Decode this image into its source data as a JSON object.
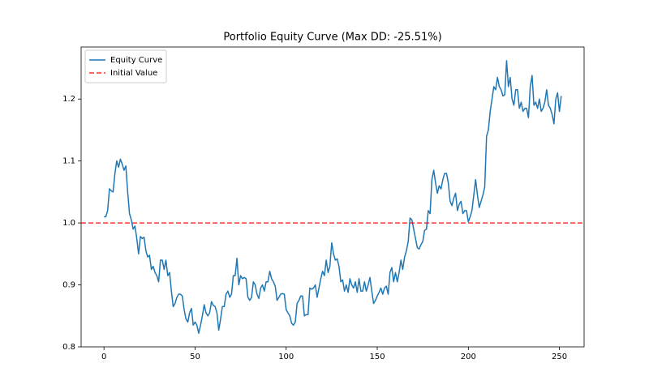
{
  "chart_data": {
    "type": "line",
    "title": "Portfolio Equity Curve (Max DD: -25.51%)",
    "x": [
      0,
      1,
      2,
      3,
      4,
      5,
      6,
      7,
      8,
      9,
      10,
      11,
      12,
      13,
      14,
      15,
      16,
      17,
      18,
      19,
      20,
      21,
      22,
      23,
      24,
      25,
      26,
      27,
      28,
      29,
      30,
      31,
      32,
      33,
      34,
      35,
      36,
      37,
      38,
      39,
      40,
      41,
      42,
      43,
      44,
      45,
      46,
      47,
      48,
      49,
      50,
      51,
      52,
      53,
      54,
      55,
      56,
      57,
      58,
      59,
      60,
      61,
      62,
      63,
      64,
      65,
      66,
      67,
      68,
      69,
      70,
      71,
      72,
      73,
      74,
      75,
      76,
      77,
      78,
      79,
      80,
      81,
      82,
      83,
      84,
      85,
      86,
      87,
      88,
      89,
      90,
      91,
      92,
      93,
      94,
      95,
      96,
      97,
      98,
      99,
      100,
      101,
      102,
      103,
      104,
      105,
      106,
      107,
      108,
      109,
      110,
      111,
      112,
      113,
      114,
      115,
      116,
      117,
      118,
      119,
      120,
      121,
      122,
      123,
      124,
      125,
      126,
      127,
      128,
      129,
      130,
      131,
      132,
      133,
      134,
      135,
      136,
      137,
      138,
      139,
      140,
      141,
      142,
      143,
      144,
      145,
      146,
      147,
      148,
      149,
      150,
      151,
      152,
      153,
      154,
      155,
      156,
      157,
      158,
      159,
      160,
      161,
      162,
      163,
      164,
      165,
      166,
      167,
      168,
      169,
      170,
      171,
      172,
      173,
      174,
      175,
      176,
      177,
      178,
      179,
      180,
      181,
      182,
      183,
      184,
      185,
      186,
      187,
      188,
      189,
      190,
      191,
      192,
      193,
      194,
      195,
      196,
      197,
      198,
      199,
      200,
      201,
      202,
      203,
      204,
      205,
      206,
      207,
      208,
      209,
      210,
      211,
      212,
      213,
      214,
      215,
      216,
      217,
      218,
      219,
      220,
      221,
      222,
      223,
      224,
      225,
      226,
      227,
      228,
      229,
      230,
      231,
      232,
      233,
      234,
      235,
      236,
      237,
      238,
      239,
      240,
      241,
      242,
      243,
      244,
      245,
      246,
      247,
      248,
      249,
      250,
      251
    ],
    "series": [
      {
        "name": "Equity Curve",
        "color": "#1f77b4",
        "values": [
          1.01,
          1.01,
          1.02,
          1.055,
          1.052,
          1.05,
          1.08,
          1.1,
          1.09,
          1.103,
          1.095,
          1.085,
          1.092,
          1.05,
          1.015,
          1.005,
          0.99,
          0.995,
          0.975,
          0.95,
          0.978,
          0.975,
          0.977,
          0.955,
          0.945,
          0.948,
          0.925,
          0.93,
          0.92,
          0.915,
          0.905,
          0.94,
          0.94,
          0.925,
          0.94,
          0.915,
          0.92,
          0.89,
          0.865,
          0.87,
          0.88,
          0.885,
          0.885,
          0.882,
          0.86,
          0.845,
          0.84,
          0.855,
          0.862,
          0.835,
          0.84,
          0.835,
          0.822,
          0.835,
          0.85,
          0.868,
          0.855,
          0.85,
          0.855,
          0.873,
          0.867,
          0.865,
          0.855,
          0.827,
          0.845,
          0.865,
          0.865,
          0.885,
          0.89,
          0.88,
          0.885,
          0.915,
          0.915,
          0.943,
          0.9,
          0.915,
          0.91,
          0.912,
          0.91,
          0.88,
          0.875,
          0.88,
          0.905,
          0.9,
          0.885,
          0.878,
          0.895,
          0.9,
          0.89,
          0.905,
          0.905,
          0.922,
          0.91,
          0.905,
          0.898,
          0.875,
          0.88,
          0.885,
          0.886,
          0.885,
          0.86,
          0.855,
          0.85,
          0.838,
          0.835,
          0.84,
          0.87,
          0.875,
          0.882,
          0.882,
          0.85,
          0.852,
          0.852,
          0.895,
          0.893,
          0.895,
          0.9,
          0.88,
          0.895,
          0.91,
          0.922,
          0.915,
          0.94,
          0.92,
          0.93,
          0.968,
          0.95,
          0.94,
          0.942,
          0.93,
          0.905,
          0.908,
          0.89,
          0.9,
          0.888,
          0.91,
          0.9,
          0.895,
          0.905,
          0.888,
          0.91,
          0.89,
          0.89,
          0.905,
          0.89,
          0.9,
          0.912,
          0.89,
          0.87,
          0.875,
          0.882,
          0.888,
          0.895,
          0.885,
          0.895,
          0.898,
          0.885,
          0.92,
          0.928,
          0.905,
          0.92,
          0.905,
          0.92,
          0.94,
          0.925,
          0.945,
          0.955,
          0.97,
          1.008,
          1.005,
          0.99,
          0.975,
          0.96,
          0.958,
          0.965,
          0.97,
          0.988,
          0.99,
          1.02,
          1.015,
          1.07,
          1.085,
          1.065,
          1.048,
          1.06,
          1.055,
          1.07,
          1.08,
          1.08,
          1.065,
          1.035,
          1.028,
          1.04,
          1.048,
          1.02,
          1.03,
          1.035,
          1.015,
          1.02,
          1.02,
          1.002,
          1.01,
          1.02,
          1.045,
          1.07,
          1.045,
          1.025,
          1.035,
          1.045,
          1.058,
          1.14,
          1.15,
          1.18,
          1.2,
          1.22,
          1.215,
          1.235,
          1.22,
          1.215,
          1.205,
          1.207,
          1.262,
          1.22,
          1.235,
          1.2,
          1.19,
          1.215,
          1.215,
          1.185,
          1.195,
          1.18,
          1.185,
          1.185,
          1.17,
          1.22,
          1.238,
          1.19,
          1.195,
          1.185,
          1.2,
          1.18,
          1.185,
          1.195,
          1.215,
          1.19,
          1.185,
          1.175,
          1.16,
          1.2,
          1.21,
          1.18,
          1.205
        ]
      }
    ],
    "hlines": [
      {
        "name": "Initial Value",
        "value": 1,
        "color": "#ff0000",
        "linestyle": "dashed"
      }
    ],
    "xlim": [
      -12.55,
      263.55
    ],
    "ylim": [
      0.8,
      1.284
    ],
    "xticks": [
      0,
      50,
      100,
      150,
      200,
      250
    ],
    "yticks": [
      0.8,
      0.9,
      {
        "value": 1,
        "label": "1.0"
      },
      1.1,
      1.2
    ],
    "legend": "upper left",
    "grid": false
  }
}
